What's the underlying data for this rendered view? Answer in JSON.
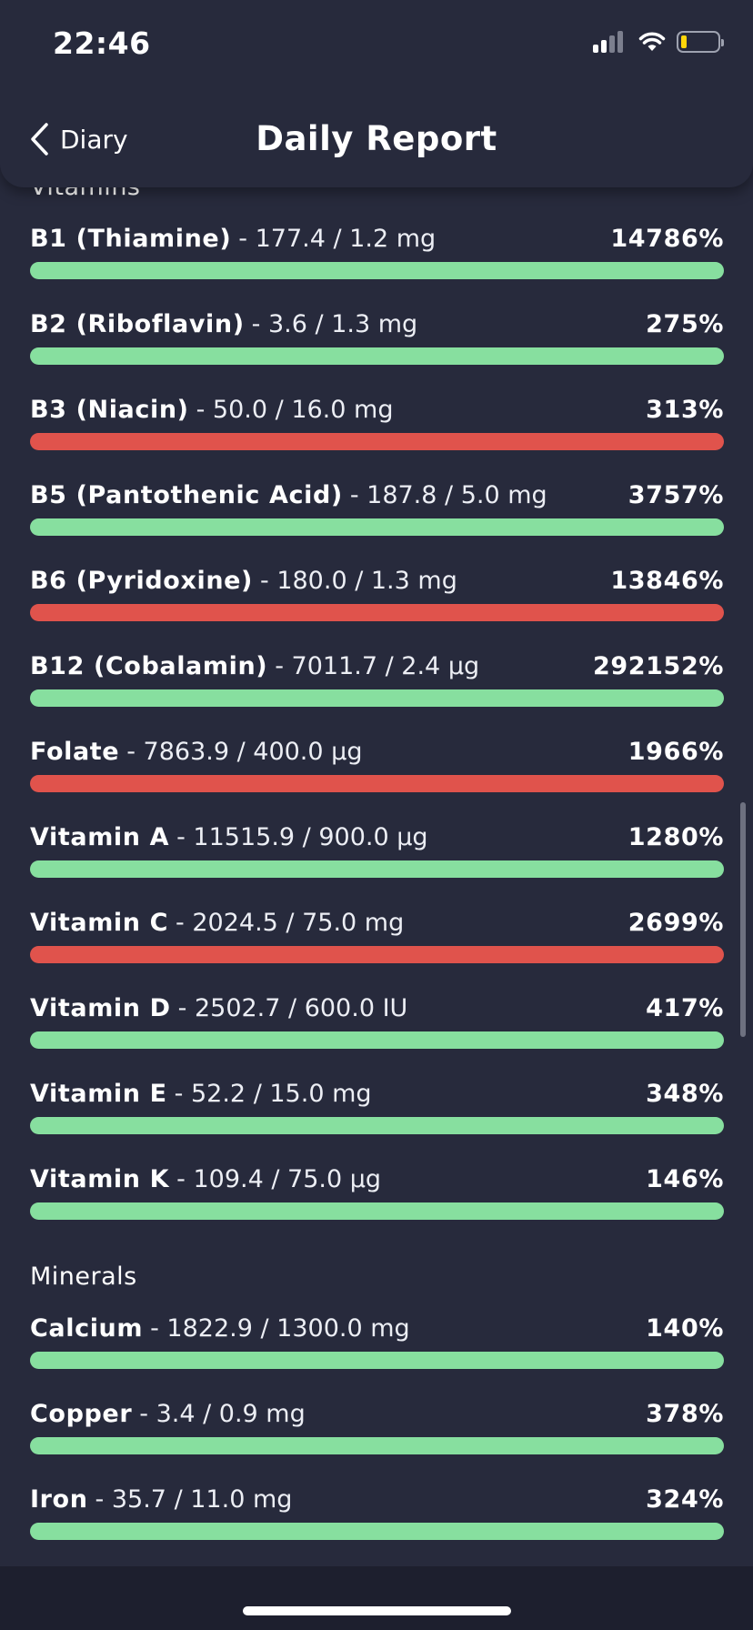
{
  "status": {
    "time": "22:46"
  },
  "nav": {
    "back_label": "Diary",
    "title": "Daily Report"
  },
  "colors": {
    "good": "#87df9f",
    "bad": "#e0534c",
    "background": "#272a3c"
  },
  "sections": {
    "vitamins": {
      "title": "Vitamins",
      "items": [
        {
          "name": "B1 (Thiamine)",
          "amount": "- 177.4 / 1.2 mg",
          "percent": "14786%",
          "status": "good"
        },
        {
          "name": "B2 (Riboflavin)",
          "amount": "- 3.6 / 1.3 mg",
          "percent": "275%",
          "status": "good"
        },
        {
          "name": "B3 (Niacin)",
          "amount": "- 50.0 / 16.0 mg",
          "percent": "313%",
          "status": "bad"
        },
        {
          "name": "B5 (Pantothenic Acid)",
          "amount": "- 187.8 / 5.0 mg",
          "percent": "3757%",
          "status": "good"
        },
        {
          "name": "B6 (Pyridoxine)",
          "amount": "- 180.0 / 1.3 mg",
          "percent": "13846%",
          "status": "bad"
        },
        {
          "name": "B12 (Cobalamin)",
          "amount": "- 7011.7 / 2.4 µg",
          "percent": "292152%",
          "status": "good"
        },
        {
          "name": "Folate",
          "amount": "- 7863.9 / 400.0 µg",
          "percent": "1966%",
          "status": "bad"
        },
        {
          "name": "Vitamin A",
          "amount": "- 11515.9 / 900.0 µg",
          "percent": "1280%",
          "status": "good"
        },
        {
          "name": "Vitamin C",
          "amount": "- 2024.5 / 75.0 mg",
          "percent": "2699%",
          "status": "bad"
        },
        {
          "name": "Vitamin D",
          "amount": "- 2502.7 / 600.0 IU",
          "percent": "417%",
          "status": "good"
        },
        {
          "name": "Vitamin E",
          "amount": "- 52.2 / 15.0 mg",
          "percent": "348%",
          "status": "good"
        },
        {
          "name": "Vitamin K",
          "amount": "- 109.4 / 75.0 µg",
          "percent": "146%",
          "status": "good"
        }
      ]
    },
    "minerals": {
      "title": "Minerals",
      "items": [
        {
          "name": "Calcium",
          "amount": "- 1822.9 / 1300.0 mg",
          "percent": "140%",
          "status": "good"
        },
        {
          "name": "Copper",
          "amount": "- 3.4 / 0.9 mg",
          "percent": "378%",
          "status": "good"
        },
        {
          "name": "Iron",
          "amount": "- 35.7 / 11.0 mg",
          "percent": "324%",
          "status": "good"
        }
      ]
    }
  }
}
